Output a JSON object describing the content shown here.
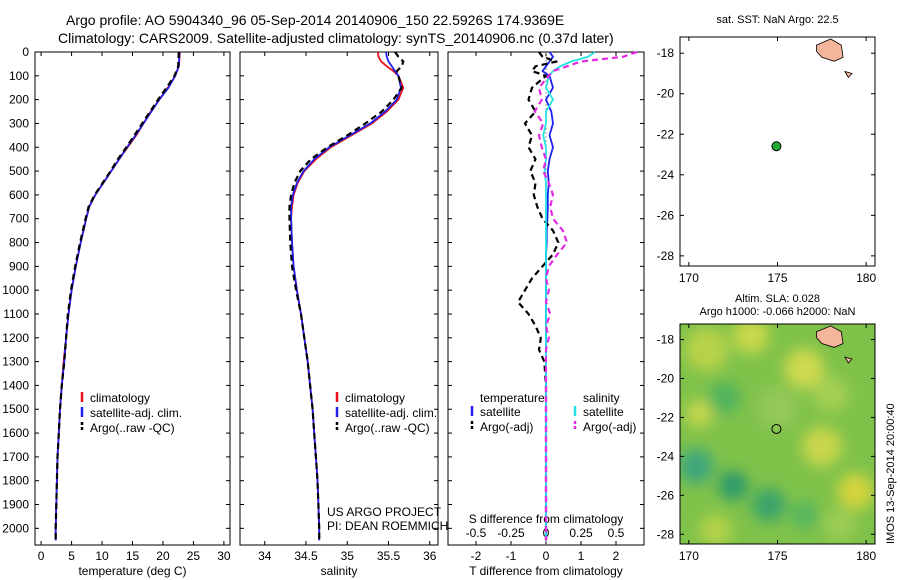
{
  "header": {
    "title_line1": "Argo profile: AO 5904340_96 05-Sep-2014 20140906_150 22.5926S 174.9369E",
    "title_line2": "Climatology: CARS2009. Satellite-adjusted climatology: synTS_20140906.nc (0.37d later)"
  },
  "depth_ticks": [
    "0",
    "100",
    "200",
    "300",
    "400",
    "500",
    "600",
    "700",
    "800",
    "900",
    "1000",
    "1100",
    "1200",
    "1300",
    "1400",
    "1500",
    "1600",
    "1700",
    "1800",
    "1900",
    "2000"
  ],
  "colors": {
    "red": "#e8111b",
    "blue": "#1f1ff0",
    "black": "#000000",
    "cyan": "#22e4e4",
    "magenta": "#e22be2"
  },
  "chart_data": [
    {
      "type": "line",
      "xlabel": "temperature (deg C)",
      "xlim": [
        -1,
        31
      ],
      "xticks": [
        "0",
        "5",
        "10",
        "15",
        "20",
        "25",
        "30"
      ],
      "depth_lim": [
        0,
        2070
      ],
      "legend": [
        "climatology",
        "satellite-adj. clim.",
        "Argo(..raw -QC)"
      ],
      "depth": [
        0,
        60,
        100,
        150,
        200,
        250,
        300,
        350,
        400,
        450,
        500,
        550,
        600,
        650,
        700,
        800,
        900,
        1000,
        1100,
        1200,
        1300,
        1400,
        1500,
        1600,
        1700,
        1800,
        1900,
        2000,
        2050
      ],
      "series": [
        {
          "name": "climatology",
          "color": "red",
          "values": [
            22.8,
            22.6,
            22,
            20.8,
            19.4,
            18,
            16.8,
            15.6,
            14.2,
            12.8,
            11.5,
            10.2,
            8.9,
            7.9,
            7.4,
            6.5,
            5.7,
            5,
            4.5,
            4.1,
            3.7,
            3.4,
            3.1,
            2.9,
            2.7,
            2.6,
            2.5,
            2.4,
            2.4
          ]
        },
        {
          "name": "satellite-adj. clim.",
          "color": "blue",
          "values": [
            22.7,
            22.6,
            22,
            20.9,
            19.4,
            18.1,
            16.8,
            15.5,
            14.1,
            12.8,
            11.5,
            10.2,
            8.9,
            7.9,
            7.4,
            6.5,
            5.7,
            5,
            4.5,
            4.1,
            3.8,
            3.4,
            3.1,
            2.9,
            2.7,
            2.6,
            2.5,
            2.4,
            2.4
          ]
        },
        {
          "name": "Argo(..raw -QC)",
          "color": "black",
          "dash": true,
          "values": [
            22.6,
            22.5,
            21.9,
            20.6,
            19.2,
            17.9,
            16.6,
            15.3,
            14,
            12.6,
            11.4,
            10.1,
            8.8,
            7.8,
            7.3,
            6.4,
            5.6,
            4.9,
            4.4,
            4.1,
            3.8,
            3.4,
            3.1,
            2.9,
            2.7,
            2.6,
            2.5,
            2.4,
            2.4
          ]
        }
      ]
    },
    {
      "type": "line",
      "xlabel": "salinity",
      "xlim": [
        33.7,
        36.1
      ],
      "xticks": [
        "34",
        "34.5",
        "35",
        "35.5",
        "36"
      ],
      "depth_lim": [
        0,
        2070
      ],
      "legend": [
        "climatology",
        "satellite-adj. clim.",
        "Argo(..raw -QC)"
      ],
      "annotation": [
        "US ARGO PROJECT",
        "PI: DEAN ROEMMICH"
      ],
      "depth": [
        0,
        20,
        40,
        60,
        80,
        100,
        150,
        200,
        250,
        300,
        350,
        400,
        450,
        500,
        550,
        600,
        650,
        700,
        800,
        900,
        1000,
        1100,
        1200,
        1300,
        1400,
        1500,
        1600,
        1700,
        1800,
        1900,
        2000,
        2050
      ],
      "series": [
        {
          "name": "climatology",
          "color": "red",
          "values": [
            35.37,
            35.38,
            35.41,
            35.48,
            35.56,
            35.62,
            35.68,
            35.62,
            35.48,
            35.3,
            35.05,
            34.8,
            34.62,
            34.48,
            34.4,
            34.35,
            34.33,
            34.32,
            34.33,
            34.35,
            34.39,
            34.44,
            34.48,
            34.52,
            34.55,
            34.58,
            34.6,
            34.62,
            34.64,
            34.65,
            34.66,
            34.66
          ]
        },
        {
          "name": "satellite-adj. clim.",
          "color": "blue",
          "values": [
            35.47,
            35.48,
            35.5,
            35.54,
            35.58,
            35.62,
            35.65,
            35.6,
            35.46,
            35.28,
            35.03,
            34.78,
            34.6,
            34.47,
            34.39,
            34.34,
            34.32,
            34.32,
            34.33,
            34.35,
            34.39,
            34.44,
            34.48,
            34.52,
            34.55,
            34.58,
            34.6,
            34.62,
            34.64,
            34.65,
            34.66,
            34.66
          ]
        },
        {
          "name": "Argo(..raw -QC)",
          "color": "black",
          "dash": true,
          "values": [
            35.58,
            35.62,
            35.68,
            35.66,
            35.6,
            35.62,
            35.66,
            35.56,
            35.42,
            35.22,
            35.0,
            34.76,
            34.56,
            34.43,
            34.36,
            34.32,
            34.3,
            34.3,
            34.31,
            34.33,
            34.38,
            34.44,
            34.48,
            34.52,
            34.55,
            34.58,
            34.6,
            34.62,
            34.64,
            34.65,
            34.66,
            34.66
          ]
        }
      ]
    },
    {
      "type": "line",
      "xlabel": "T difference from climatology",
      "xlabel_top": "S difference from climatology",
      "xlim": [
        -2.8,
        2.8
      ],
      "xticks": [
        "-2",
        "-1",
        "0",
        "1",
        "2"
      ],
      "xticks_top": [
        "-0.5",
        "-0.25",
        "0",
        "0.25",
        "0.5"
      ],
      "depth_lim": [
        0,
        2070
      ],
      "legend_temperature_header": "temperature",
      "legend_salinity_header": "salinity",
      "legend": [
        "satellite",
        "Argo(-adj)",
        "satellite",
        "Argo(-adj)"
      ],
      "depth": [
        0,
        20,
        40,
        60,
        80,
        100,
        150,
        200,
        250,
        300,
        350,
        400,
        450,
        500,
        550,
        600,
        650,
        700,
        750,
        800,
        850,
        900,
        950,
        1000,
        1050,
        1100,
        1150,
        1200,
        1250,
        1300,
        1400,
        1600,
        1800,
        2050
      ],
      "series": [
        {
          "name": "temperature satellite",
          "color": "blue",
          "values": [
            0.1,
            0.2,
            0.1,
            0.0,
            -0.1,
            0.1,
            0.2,
            0.0,
            0.15,
            0.2,
            0.1,
            0.2,
            0.1,
            0.05,
            0.08,
            0.05,
            0.05,
            0.04,
            0.02,
            0.02,
            0.0,
            0.0,
            0.0,
            0.0,
            0.0,
            0.0,
            0.0,
            0.0,
            0.0,
            0.0,
            0.0,
            0.0,
            0.0,
            0.0
          ]
        },
        {
          "name": "temperature Argo(-adj)",
          "color": "black",
          "dash": true,
          "values": [
            -0.2,
            -0.1,
            0.3,
            -0.3,
            -0.4,
            0.0,
            -0.4,
            -0.5,
            -0.3,
            -0.6,
            -0.4,
            -0.5,
            -0.3,
            -0.45,
            -0.3,
            -0.35,
            -0.25,
            -0.1,
            0.2,
            0.35,
            0.2,
            -0.1,
            -0.4,
            -0.6,
            -0.8,
            -0.5,
            -0.3,
            -0.15,
            -0.2,
            -0.05,
            0.0,
            0.0,
            0.0,
            0.0
          ]
        },
        {
          "name": "salinity satellite",
          "color": "cyan",
          "values": [
            0.35,
            0.3,
            0.18,
            0.1,
            0.05,
            0.02,
            0.0,
            0.05,
            0.0,
            0.0,
            -0.02,
            0.0,
            0.0,
            -0.01,
            0.0,
            0.0,
            0.0,
            0.0,
            0.0,
            0.0,
            0.0,
            0.0,
            0.0,
            0.0,
            0.0,
            0.0,
            0.0,
            0.0,
            0.0,
            0.0,
            0.0,
            0.0,
            0.0,
            0.0
          ]
        },
        {
          "name": "salinity Argo(-adj)",
          "color": "magenta",
          "dash": true,
          "values": [
            0.65,
            0.55,
            0.25,
            0.15,
            0.05,
            0.02,
            -0.05,
            -0.03,
            -0.08,
            -0.02,
            -0.05,
            -0.03,
            0.0,
            -0.02,
            0.02,
            0.05,
            0.03,
            0.05,
            0.12,
            0.15,
            0.08,
            0.02,
            0.0,
            0.02,
            0.0,
            0.03,
            0.0,
            0.02,
            0.0,
            0.0,
            0.0,
            0.0,
            0.0,
            0.0
          ]
        }
      ]
    },
    {
      "type": "scatter",
      "title": "sat. SST: NaN Argo: 22.5",
      "xlim": [
        169.5,
        180.5
      ],
      "ylim": [
        -28.5,
        -17.2
      ],
      "xticks": [
        "170",
        "175",
        "180"
      ],
      "yticks": [
        "-18",
        "-20",
        "-22",
        "-24",
        "-26",
        "-28"
      ],
      "points": [
        {
          "x": 174.94,
          "y": -22.59,
          "color": "#22aa33"
        }
      ]
    },
    {
      "type": "heatmap",
      "title_line1": "Altim. SLA: 0.028",
      "title_line2": "Argo h1000: -0.066 h2000: NaN",
      "xlim": [
        169.5,
        180.5
      ],
      "ylim": [
        -28.5,
        -17.2
      ],
      "xticks": [
        "170",
        "175",
        "180"
      ],
      "yticks": [
        "-18",
        "-20",
        "-22",
        "-24",
        "-26",
        "-28"
      ],
      "points": [
        {
          "x": 174.94,
          "y": -22.59
        }
      ],
      "side_label": "IMOS 13-Sep-2014 20:00:40"
    }
  ]
}
